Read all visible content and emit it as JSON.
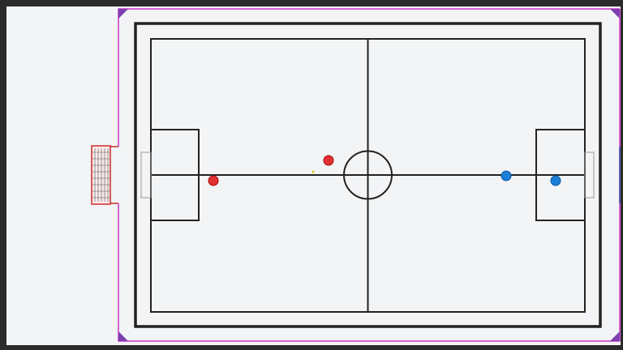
{
  "game": {
    "type": "top-down soccer / haxball-style",
    "colors": {
      "background": "#f3f4f6",
      "field_lines": "#222222",
      "stadium_boundary": "#cc33cc",
      "stadium_outline": "#6a3aa8",
      "red_team": "#e03131",
      "blue_team": "#1c7ed6",
      "goal_net": "#c92a2a",
      "ball_marker": "#d4c200"
    },
    "players": [
      {
        "team": "red",
        "role": "goalkeeper"
      },
      {
        "team": "red",
        "role": "field"
      },
      {
        "team": "blue",
        "role": "field"
      },
      {
        "team": "blue",
        "role": "goalkeeper"
      }
    ],
    "goals": [
      {
        "side": "left",
        "style": "net"
      },
      {
        "side": "right",
        "style": "post-line"
      }
    ]
  }
}
